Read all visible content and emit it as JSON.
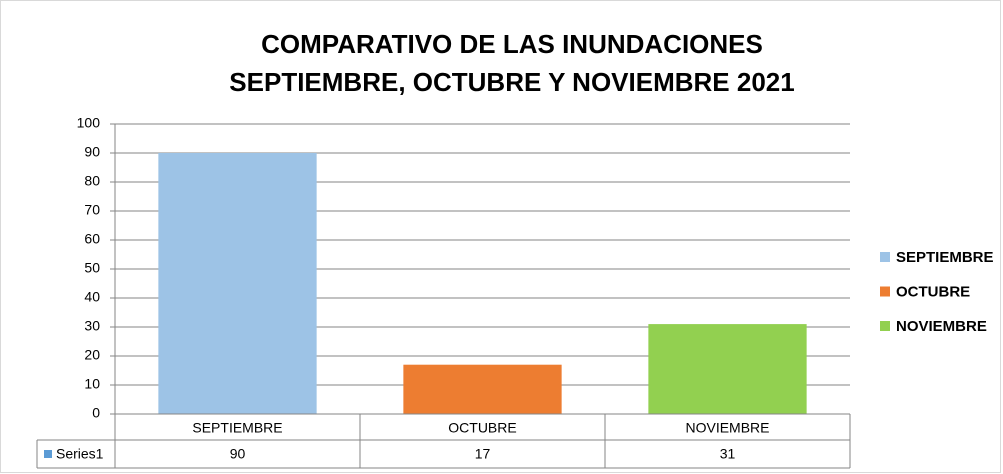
{
  "chart_data": {
    "type": "bar",
    "title": [
      "COMPARATIVO DE LAS INUNDACIONES",
      "SEPTIEMBRE, OCTUBRE Y NOVIEMBRE 2021"
    ],
    "categories": [
      "SEPTIEMBRE",
      "OCTUBRE",
      "NOVIEMBRE"
    ],
    "series": [
      {
        "name": "Series1",
        "values": [
          90,
          17,
          31
        ],
        "colors": [
          "#9dc3e6",
          "#ed7d31",
          "#92d050"
        ],
        "color": "#5b9bd5"
      }
    ],
    "ylim": [
      0,
      100
    ],
    "yticks": [
      0,
      10,
      20,
      30,
      40,
      50,
      60,
      70,
      80,
      90,
      100
    ],
    "grid": true,
    "legend": "right",
    "data_table": true
  }
}
